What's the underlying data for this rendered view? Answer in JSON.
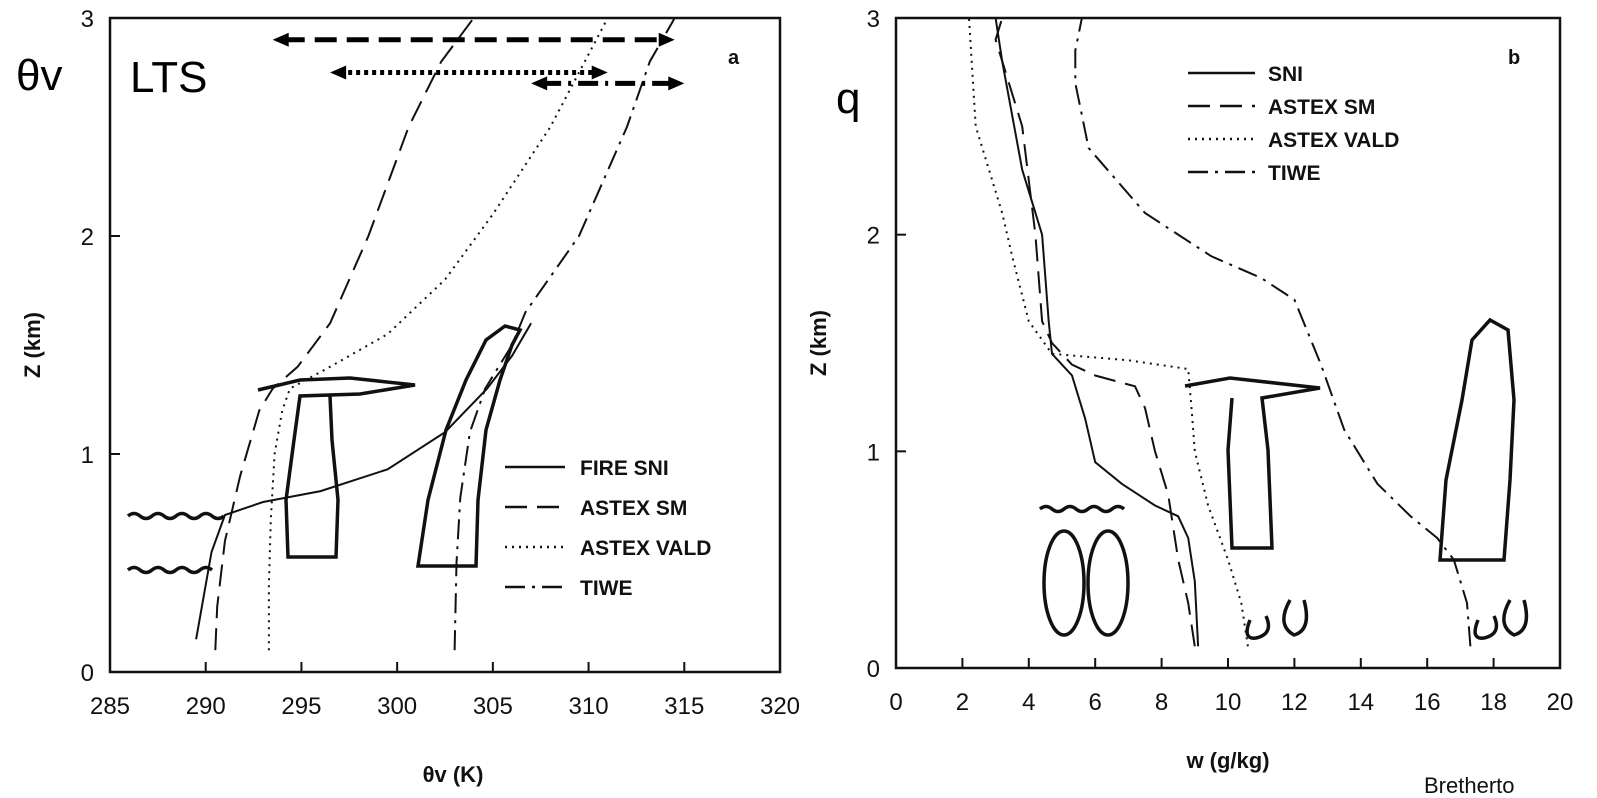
{
  "overlay": {
    "theta_symbol": "θv",
    "lts_label": "LTS",
    "q_label": "q",
    "credit": "Bretherto"
  },
  "colors": {
    "line": "#111111",
    "background": "#ffffff"
  },
  "chart_data": [
    {
      "type": "line",
      "panel_letter": "a",
      "xlabel": "θv (K)",
      "ylabel": "Z (km)",
      "xlim": [
        285,
        320
      ],
      "ylim": [
        0,
        3
      ],
      "xticks": [
        "285",
        "290",
        "295",
        "300",
        "305",
        "310",
        "315",
        "320"
      ],
      "yticks": [
        "0",
        "1",
        "2",
        "3"
      ],
      "legend_position": "lower-right",
      "series": [
        {
          "name": "FIRE SNI",
          "style": "solid",
          "x": [
            289.5,
            289.8,
            290.3,
            291.0,
            293.0,
            296.0,
            299.5,
            302.5,
            304.7,
            306.0,
            307.0
          ],
          "y": [
            0.15,
            0.3,
            0.55,
            0.72,
            0.78,
            0.83,
            0.93,
            1.1,
            1.3,
            1.45,
            1.6
          ]
        },
        {
          "name": "ASTEX SM",
          "style": "dashed",
          "x": [
            290.5,
            290.6,
            291.0,
            291.8,
            292.8,
            293.5,
            294.8,
            296.5,
            298.5,
            300.6,
            302.3,
            304.0
          ],
          "y": [
            0.1,
            0.3,
            0.6,
            0.9,
            1.2,
            1.3,
            1.4,
            1.6,
            2.0,
            2.5,
            2.8,
            3.0
          ]
        },
        {
          "name": "ASTEX VALD",
          "style": "dotted",
          "x": [
            293.3,
            293.3,
            293.4,
            293.6,
            294.0,
            294.4,
            296.5,
            299.5,
            302.5,
            305.0,
            308.0,
            311.0
          ],
          "y": [
            0.1,
            0.4,
            0.7,
            1.0,
            1.2,
            1.3,
            1.4,
            1.55,
            1.8,
            2.1,
            2.5,
            3.0
          ]
        },
        {
          "name": "TIWE",
          "style": "dashdot",
          "x": [
            303.0,
            303.1,
            303.3,
            303.8,
            304.6,
            306.0,
            306.7,
            309.5,
            312.0,
            313.2,
            314.5
          ],
          "y": [
            0.1,
            0.5,
            0.8,
            1.1,
            1.3,
            1.5,
            1.65,
            2.0,
            2.5,
            2.8,
            3.0
          ]
        }
      ],
      "arrows": [
        {
          "name": "arrow-astex-sm",
          "style": "dashed",
          "x1": 293.5,
          "x2": 314.5,
          "y": 2.9,
          "head_start": true,
          "head_end": true
        },
        {
          "name": "arrow-astex-vald",
          "style": "dotted",
          "x1": 296.5,
          "x2": 311.0,
          "y": 2.75,
          "head_start": true,
          "head_end": true
        },
        {
          "name": "arrow-tiwe",
          "style": "dashdot",
          "x1": 307.0,
          "x2": 315.0,
          "y": 2.7,
          "head_start": true,
          "head_end": true
        }
      ]
    },
    {
      "type": "line",
      "panel_letter": "b",
      "xlabel": "w (g/kg)",
      "ylabel": "Z (km)",
      "xlim": [
        0,
        20
      ],
      "ylim": [
        0,
        3
      ],
      "xticks": [
        "0",
        "2",
        "4",
        "6",
        "8",
        "10",
        "12",
        "14",
        "16",
        "18",
        "20"
      ],
      "yticks": [
        "0",
        "1",
        "2",
        "3"
      ],
      "legend_position": "top-center",
      "series": [
        {
          "name": "SNI",
          "style": "solid",
          "x": [
            9.1,
            9.0,
            8.8,
            8.5,
            7.8,
            6.8,
            6.0,
            5.7,
            5.3,
            4.7,
            4.6,
            4.4,
            3.8,
            3.2,
            3.0
          ],
          "y": [
            0.1,
            0.4,
            0.6,
            0.7,
            0.75,
            0.85,
            0.95,
            1.15,
            1.35,
            1.45,
            1.6,
            2.0,
            2.3,
            2.8,
            3.0
          ]
        },
        {
          "name": "ASTEX SM",
          "style": "dashed",
          "x": [
            9.0,
            8.8,
            8.5,
            8.2,
            7.8,
            7.5,
            7.2,
            6.0,
            5.3,
            4.7,
            4.4,
            4.2,
            3.8,
            3.0,
            3.2
          ],
          "y": [
            0.1,
            0.3,
            0.5,
            0.8,
            1.0,
            1.2,
            1.3,
            1.35,
            1.4,
            1.5,
            1.6,
            2.0,
            2.5,
            2.9,
            3.0
          ]
        },
        {
          "name": "ASTEX VALD",
          "style": "dotted",
          "x": [
            10.6,
            10.4,
            10.0,
            9.4,
            9.0,
            8.9,
            8.8,
            7.0,
            4.7,
            4.0,
            3.5,
            3.2,
            2.4,
            2.2
          ],
          "y": [
            0.1,
            0.3,
            0.5,
            0.75,
            1.0,
            1.2,
            1.38,
            1.42,
            1.45,
            1.6,
            1.9,
            2.1,
            2.5,
            3.0
          ]
        },
        {
          "name": "TIWE",
          "style": "dashdot",
          "x": [
            17.3,
            17.2,
            16.8,
            16.3,
            15.5,
            14.5,
            13.5,
            12.8,
            12.0,
            11.0,
            9.5,
            7.5,
            5.8,
            5.4,
            5.4,
            5.6
          ],
          "y": [
            0.1,
            0.3,
            0.5,
            0.6,
            0.7,
            0.85,
            1.1,
            1.4,
            1.7,
            1.8,
            1.9,
            2.1,
            2.4,
            2.7,
            2.85,
            3.0
          ]
        }
      ]
    }
  ]
}
